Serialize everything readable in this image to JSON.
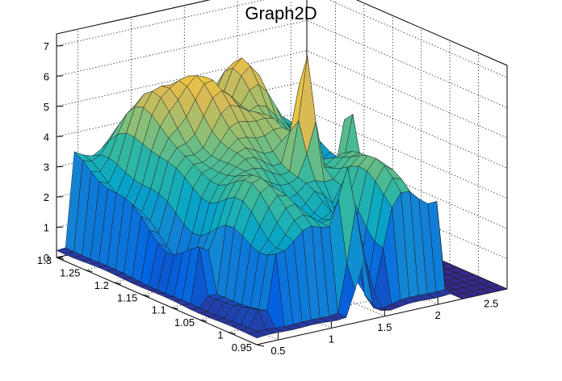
{
  "chart_data": {
    "type": "surface3d",
    "title": "Graph2D",
    "xlabel": "",
    "ylabel": "",
    "zlabel": "",
    "xlim": [
      0.3,
      2.65
    ],
    "ylim": [
      0.95,
      1.3
    ],
    "zlim": [
      0,
      7.4
    ],
    "x_ticks": [
      "0.5",
      "1",
      "1.5",
      "2",
      "2.5"
    ],
    "y_ticks": [
      "0.95",
      "1",
      "1.05",
      "1.1",
      "1.15",
      "1.2",
      "1.25",
      "1.3"
    ],
    "z_ticks": [
      "0",
      "1",
      "2",
      "3",
      "4",
      "5",
      "6",
      "7"
    ],
    "grid": true,
    "palette": [
      "#352a87",
      "#0363e1",
      "#1485d4",
      "#06a7c6",
      "#38b99e",
      "#92bf73",
      "#d9ba56",
      "#fcce2e",
      "#f9fb0e"
    ],
    "notes_visible": []
  }
}
